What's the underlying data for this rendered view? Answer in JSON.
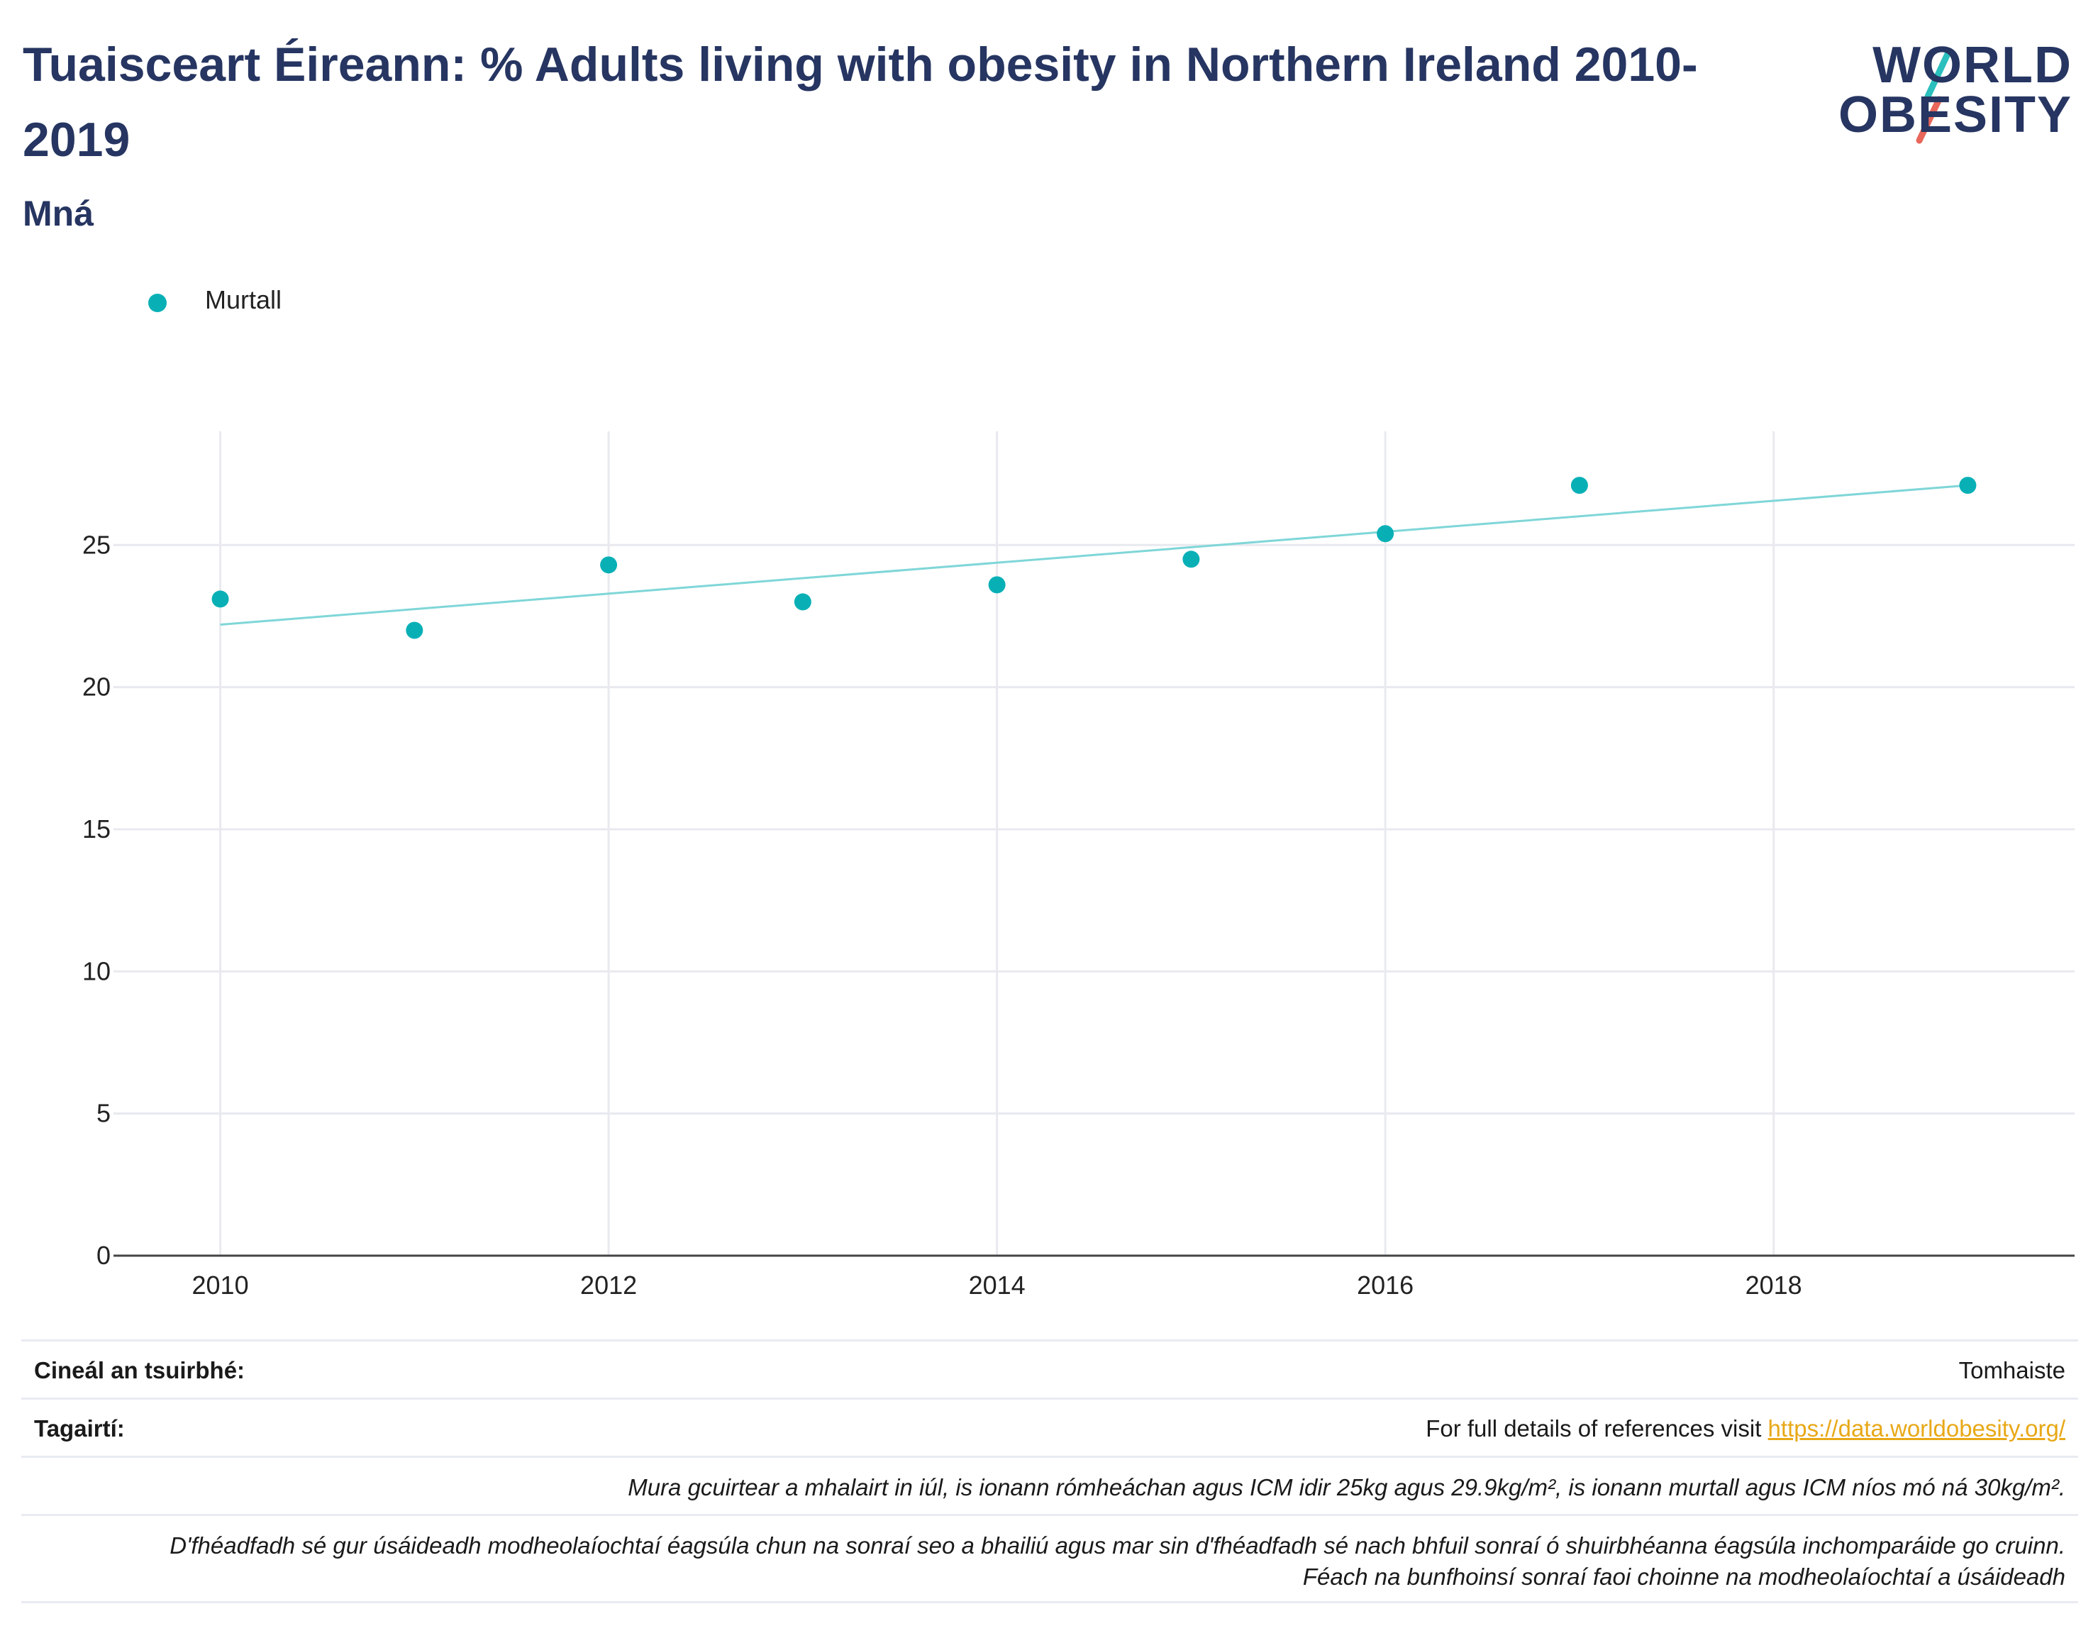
{
  "header": {
    "title": "Tuaisceart Éireann: % Adults living with obesity in Northern Ireland 2010-2019",
    "subtitle": "Mná"
  },
  "logo": {
    "line1": "WORLD",
    "line2": "OBESITY",
    "slash_colors": [
      "#2bbfbd",
      "#e8665a"
    ]
  },
  "legend": {
    "label": "Murtall",
    "color": "#08b0b6"
  },
  "chart_data": {
    "type": "scatter",
    "title": "",
    "xlabel": "",
    "ylabel": "",
    "x": [
      2010,
      2011,
      2012,
      2013,
      2014,
      2015,
      2016,
      2017,
      2019
    ],
    "series": [
      {
        "name": "Murtall",
        "values": [
          23.1,
          22.0,
          24.3,
          23.0,
          23.6,
          24.5,
          25.4,
          27.1,
          27.1
        ],
        "color": "#08b0b6"
      }
    ],
    "trendline": {
      "x": [
        2010,
        2019
      ],
      "y": [
        22.2,
        27.1
      ],
      "color": "#7fd6d8"
    },
    "xlim": [
      2009.45,
      2019.55
    ],
    "ylim": [
      0,
      29
    ],
    "x_ticks": [
      2010,
      2012,
      2014,
      2016,
      2018
    ],
    "y_ticks": [
      0,
      5,
      10,
      15,
      20,
      25
    ],
    "grid": true,
    "legend_position": "top-left"
  },
  "info": {
    "survey_label": "Cineál an tsuirbhé:",
    "survey_value": "Tomhaiste",
    "refs_label": "Tagairtí:",
    "refs_text": "For full details of references visit ",
    "refs_link": "https://data.worldobesity.org/",
    "note1": "Mura gcuirtear a mhalairt in iúl, is ionann rómheáchan agus ICM idir 25kg agus 29.9kg/m², is ionann murtall agus ICM níos mó ná 30kg/m².",
    "note2_line1": "D'fhéadfadh sé gur úsáideadh modheolaíochtaí éagsúla chun na sonraí seo a bhailiú agus mar sin d'fhéadfadh sé nach bhfuil sonraí ó shuirbhéanna éagsúla inchomparáide go cruinn.",
    "note2_line2": "Féach na bunfhoinsí sonraí faoi choinne na modheolaíochtaí a úsáideadh"
  }
}
